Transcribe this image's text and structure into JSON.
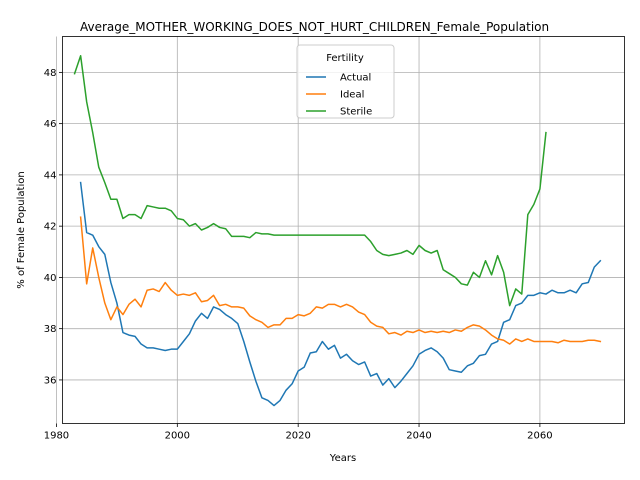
{
  "chart_data": {
    "type": "line",
    "title": "Average_MOTHER_WORKING_DOES_NOT_HURT_CHILDREN_Female_Population",
    "xlabel": "Years",
    "ylabel": "% of Female Population",
    "xlim": [
      1981,
      2074
    ],
    "ylim": [
      34.3,
      49.4
    ],
    "xticks": [
      1980,
      2000,
      2020,
      2040,
      2060
    ],
    "yticks": [
      36,
      38,
      40,
      42,
      44,
      46,
      48
    ],
    "grid": true,
    "legend": {
      "title": "Fertility",
      "placement": "top-center"
    },
    "series": [
      {
        "name": "Actual",
        "color": "#1f77b4",
        "x": [
          1984,
          1985,
          1986,
          1987,
          1988,
          1989,
          1990,
          1991,
          1992,
          1993,
          1994,
          1995,
          1996,
          1997,
          1998,
          1999,
          2000,
          2001,
          2002,
          2003,
          2004,
          2005,
          2006,
          2007,
          2008,
          2009,
          2010,
          2011,
          2012,
          2013,
          2014,
          2015,
          2016,
          2017,
          2018,
          2019,
          2020,
          2021,
          2022,
          2023,
          2024,
          2025,
          2026,
          2027,
          2028,
          2029,
          2030,
          2031,
          2032,
          2033,
          2034,
          2035,
          2036,
          2037,
          2038,
          2039,
          2040,
          2041,
          2042,
          2043,
          2044,
          2045,
          2046,
          2047,
          2048,
          2049,
          2050,
          2051,
          2052,
          2053,
          2054,
          2055,
          2056,
          2057,
          2058,
          2059,
          2060,
          2061,
          2062,
          2063,
          2064,
          2065,
          2066,
          2067,
          2068,
          2069,
          2070
        ],
        "values": [
          43.7,
          41.75,
          41.65,
          41.2,
          40.9,
          39.8,
          39.0,
          37.85,
          37.75,
          37.7,
          37.4,
          37.25,
          37.25,
          37.2,
          37.15,
          37.2,
          37.2,
          37.5,
          37.8,
          38.3,
          38.6,
          38.4,
          38.85,
          38.75,
          38.55,
          38.4,
          38.2,
          37.5,
          36.7,
          35.95,
          35.3,
          35.2,
          35.0,
          35.2,
          35.6,
          35.85,
          36.35,
          36.5,
          37.05,
          37.1,
          37.5,
          37.2,
          37.35,
          36.85,
          37.0,
          36.75,
          36.6,
          36.7,
          36.15,
          36.25,
          35.8,
          36.05,
          35.7,
          35.95,
          36.25,
          36.55,
          37.0,
          37.15,
          37.25,
          37.1,
          36.85,
          36.4,
          36.35,
          36.3,
          36.55,
          36.65,
          36.95,
          37.0,
          37.4,
          37.5,
          38.25,
          38.35,
          38.9,
          39.0,
          39.3,
          39.3,
          39.4,
          39.35,
          39.5,
          39.4,
          39.4,
          39.5,
          39.4,
          39.75,
          39.8,
          40.4,
          40.65
        ]
      },
      {
        "name": "Ideal",
        "color": "#ff7f0e",
        "x": [
          1984,
          1985,
          1986,
          1987,
          1988,
          1989,
          1990,
          1991,
          1992,
          1993,
          1994,
          1995,
          1996,
          1997,
          1998,
          1999,
          2000,
          2001,
          2002,
          2003,
          2004,
          2005,
          2006,
          2007,
          2008,
          2009,
          2010,
          2011,
          2012,
          2013,
          2014,
          2015,
          2016,
          2017,
          2018,
          2019,
          2020,
          2021,
          2022,
          2023,
          2024,
          2025,
          2026,
          2027,
          2028,
          2029,
          2030,
          2031,
          2032,
          2033,
          2034,
          2035,
          2036,
          2037,
          2038,
          2039,
          2040,
          2041,
          2042,
          2043,
          2044,
          2045,
          2046,
          2047,
          2048,
          2049,
          2050,
          2051,
          2052,
          2053,
          2054,
          2055,
          2056,
          2057,
          2058,
          2059,
          2060,
          2061,
          2062,
          2063,
          2064,
          2065,
          2066,
          2067,
          2068,
          2069,
          2070
        ],
        "values": [
          42.35,
          39.75,
          41.15,
          40.0,
          39.0,
          38.35,
          38.85,
          38.55,
          38.95,
          39.15,
          38.85,
          39.5,
          39.55,
          39.45,
          39.8,
          39.5,
          39.3,
          39.35,
          39.3,
          39.4,
          39.05,
          39.1,
          39.3,
          38.9,
          38.95,
          38.85,
          38.85,
          38.8,
          38.5,
          38.35,
          38.25,
          38.05,
          38.15,
          38.15,
          38.4,
          38.4,
          38.55,
          38.5,
          38.6,
          38.85,
          38.8,
          38.95,
          38.95,
          38.85,
          38.95,
          38.85,
          38.65,
          38.55,
          38.25,
          38.1,
          38.05,
          37.8,
          37.85,
          37.75,
          37.9,
          37.85,
          37.95,
          37.85,
          37.9,
          37.85,
          37.9,
          37.85,
          37.95,
          37.9,
          38.05,
          38.15,
          38.1,
          37.95,
          37.75,
          37.6,
          37.55,
          37.4,
          37.6,
          37.5,
          37.6,
          37.5,
          37.5,
          37.5,
          37.5,
          37.45,
          37.55,
          37.5,
          37.5,
          37.5,
          37.55,
          37.55,
          37.5
        ]
      },
      {
        "name": "Sterile",
        "color": "#2ca02c",
        "x": [
          1983,
          1984,
          1985,
          1986,
          1987,
          1988,
          1989,
          1990,
          1991,
          1992,
          1993,
          1994,
          1995,
          1996,
          1997,
          1998,
          1999,
          2000,
          2001,
          2002,
          2003,
          2004,
          2005,
          2006,
          2007,
          2008,
          2009,
          2010,
          2011,
          2012,
          2013,
          2014,
          2015,
          2016,
          2017,
          2018,
          2019,
          2020,
          2021,
          2022,
          2023,
          2024,
          2025,
          2026,
          2027,
          2028,
          2029,
          2030,
          2031,
          2032,
          2033,
          2034,
          2035,
          2036,
          2037,
          2038,
          2039,
          2040,
          2041,
          2042,
          2043,
          2044,
          2045,
          2046,
          2047,
          2048,
          2049,
          2050,
          2051,
          2052,
          2053,
          2054,
          2055,
          2056,
          2057,
          2058,
          2059,
          2060,
          2061
        ],
        "values": [
          47.95,
          48.65,
          46.85,
          45.65,
          44.3,
          43.7,
          43.05,
          43.05,
          42.3,
          42.45,
          42.45,
          42.3,
          42.8,
          42.75,
          42.7,
          42.7,
          42.6,
          42.3,
          42.25,
          42.0,
          42.1,
          41.85,
          41.95,
          42.1,
          41.95,
          41.9,
          41.6,
          41.6,
          41.6,
          41.55,
          41.75,
          41.7,
          41.7,
          41.65,
          41.65,
          41.65,
          41.65,
          41.65,
          41.65,
          41.65,
          41.65,
          41.65,
          41.65,
          41.65,
          41.65,
          41.65,
          41.65,
          41.65,
          41.65,
          41.4,
          41.05,
          40.9,
          40.85,
          40.9,
          40.95,
          41.05,
          40.9,
          41.25,
          41.05,
          40.95,
          41.05,
          40.3,
          40.15,
          40.0,
          39.75,
          39.7,
          40.2,
          40.0,
          40.65,
          40.1,
          40.85,
          40.2,
          38.9,
          39.55,
          39.35,
          42.45,
          42.85,
          43.45,
          45.65
        ]
      }
    ]
  }
}
